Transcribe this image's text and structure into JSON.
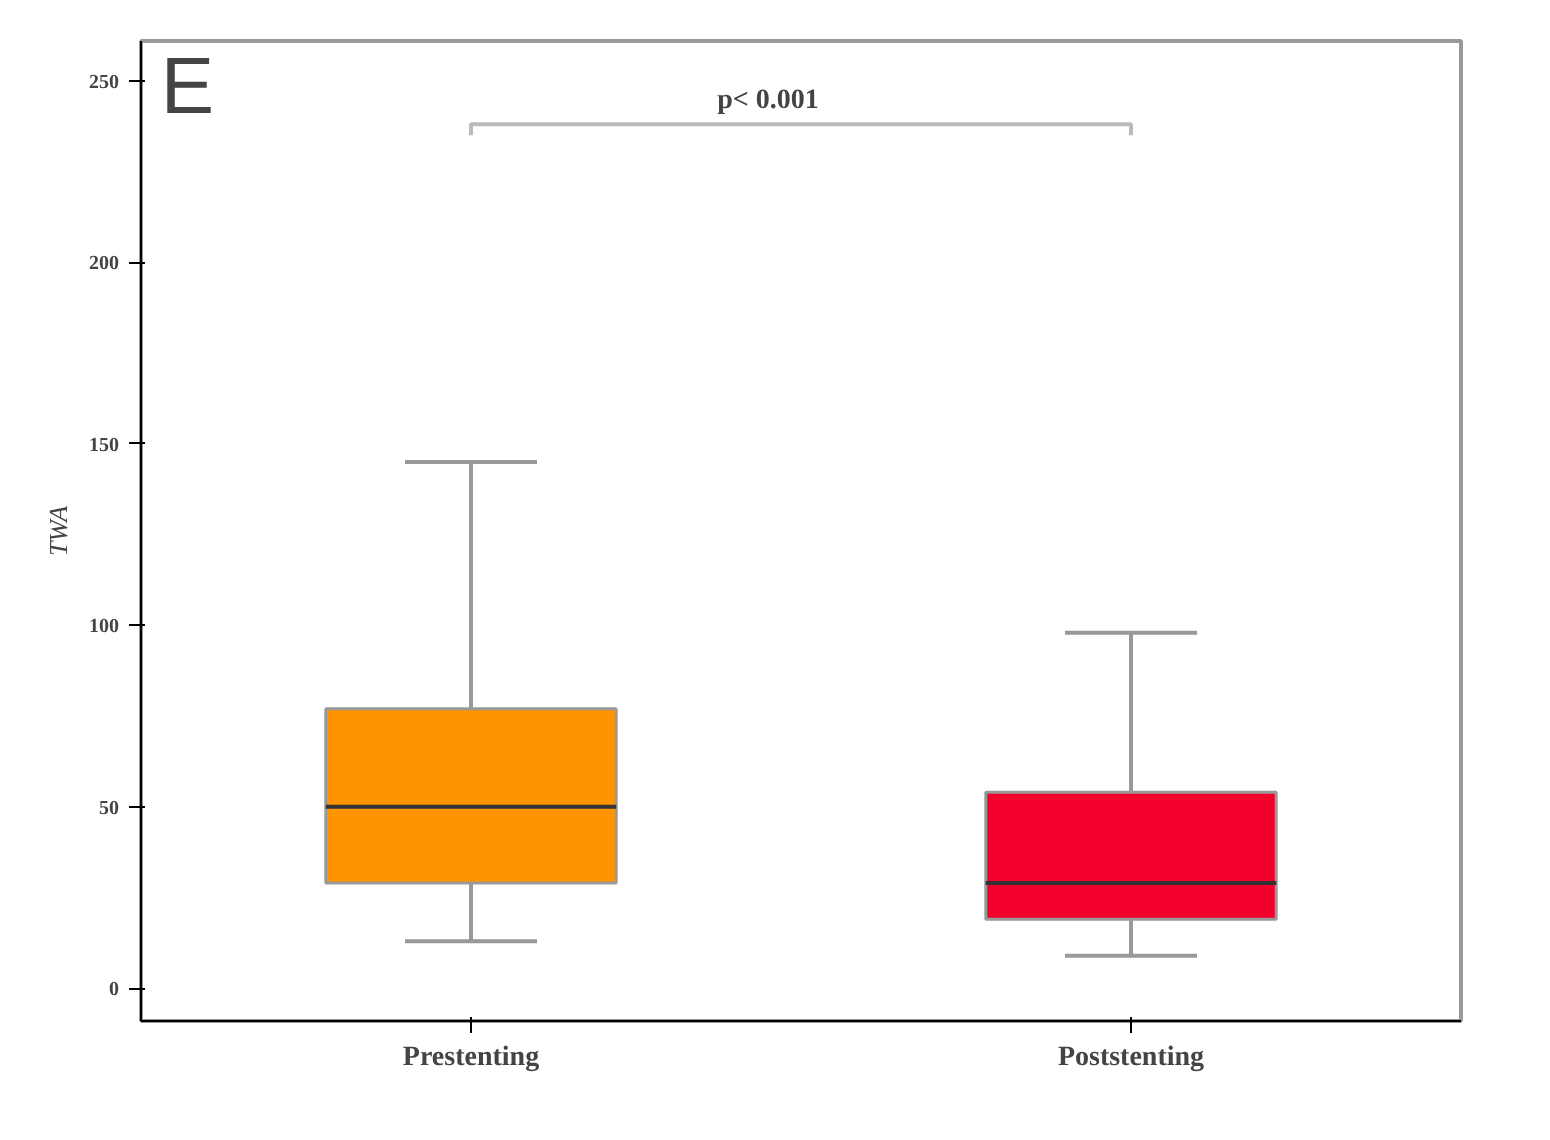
{
  "chart_data": {
    "type": "box",
    "title": "E",
    "ylabel": "TWA",
    "categories": [
      "Prestenting",
      "Poststenting"
    ],
    "colors": [
      "#ff9400",
      "#f2002b"
    ],
    "boxes": [
      {
        "low": 13,
        "q1": 29,
        "median": 50,
        "q3": 77,
        "high": 145
      },
      {
        "low": 9,
        "q1": 19,
        "median": 29,
        "q3": 54,
        "high": 98
      }
    ],
    "ylim": [
      -9,
      261
    ],
    "yticks": [
      0,
      50,
      100,
      150,
      200,
      250
    ],
    "grid": false,
    "annotations": [
      "p< 0.001"
    ]
  }
}
